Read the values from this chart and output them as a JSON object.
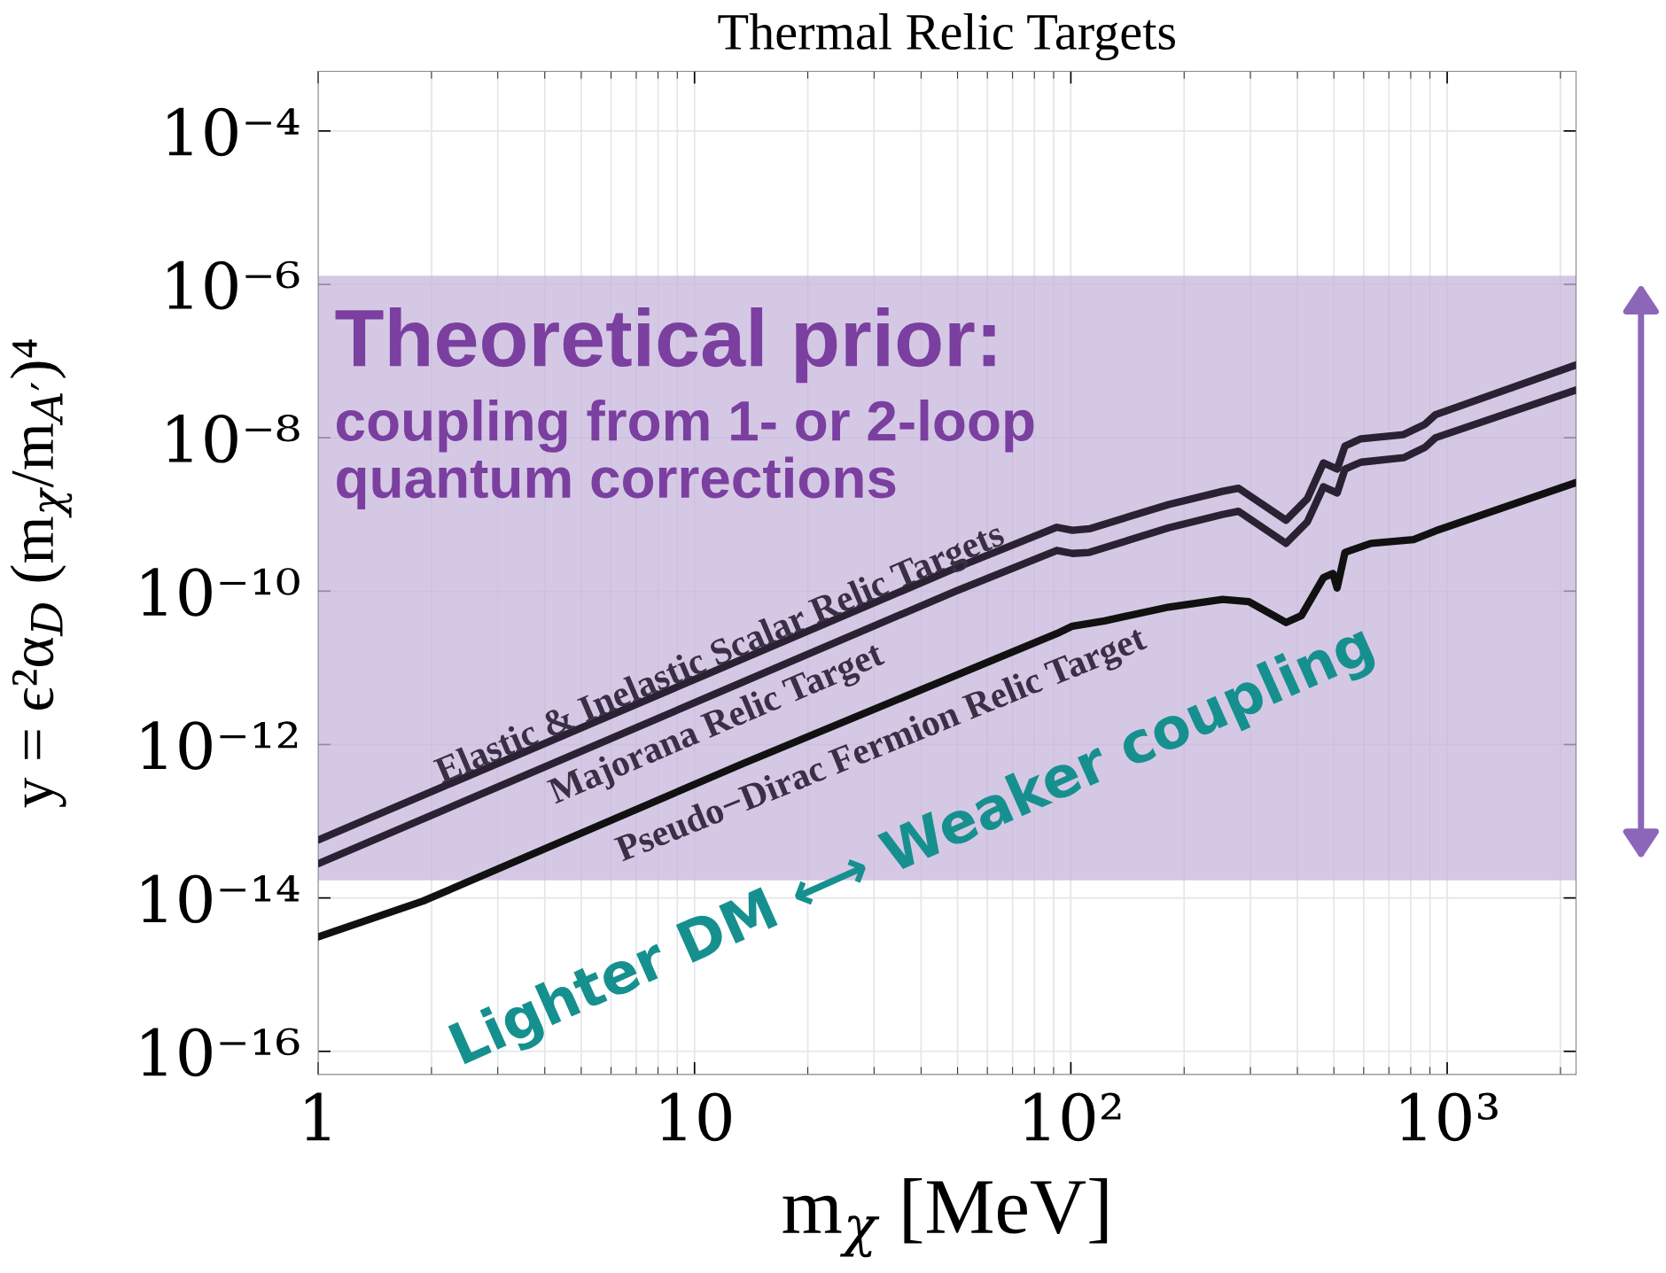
{
  "chart_data": {
    "type": "line",
    "title": "Thermal Relic Targets",
    "xlabel": "m$_{χ}$ [MeV]",
    "ylabel": "y = ϵ²α$_{D}$ (m$_{χ}$/m$_{A′}$)⁴",
    "log": "xy",
    "grid": true,
    "marker": "none",
    "line_style": "solid",
    "xlim": [
      1,
      2200
    ],
    "ylim": [
      5e-17,
      0.0006
    ],
    "xticks": [
      1,
      10,
      {
        "value": 100,
        "label": "10²"
      },
      {
        "value": 1000,
        "label": "10³"
      }
    ],
    "yticks": [
      {
        "value": 1e-16,
        "label": "10⁻¹⁶"
      },
      {
        "value": 1e-14,
        "label": "10⁻¹⁴"
      },
      {
        "value": 1e-12,
        "label": "10⁻¹²"
      },
      {
        "value": 1e-10,
        "label": "10⁻¹⁰"
      },
      {
        "value": 1e-08,
        "label": "10⁻⁸"
      },
      {
        "value": 1e-06,
        "label": "10⁻⁶"
      },
      {
        "value": 0.0001,
        "label": "10⁻⁴"
      }
    ],
    "series": [
      {
        "color": "#2a2233",
        "x": [
          1,
          3.64,
          13.4,
          49.4,
          91.8,
          101,
          112,
          182,
          253,
          279,
          373,
          425,
          469,
          510,
          535,
          590,
          766,
          873,
          931,
          2200
        ],
        "values": [
          5.7e-14,
          8.5e-13,
          1.3e-11,
          2e-10,
          6.8e-10,
          6.2e-10,
          6.5e-10,
          1.35e-09,
          2e-09,
          2.2e-09,
          8.4e-10,
          1.6e-09,
          4.7e-09,
          3.9e-09,
          7.8e-09,
          9.7e-09,
          1.1e-08,
          1.5e-08,
          2e-08,
          8.9e-08
        ]
      },
      {
        "color": "#2a2233",
        "x": [
          1,
          3.64,
          13.4,
          49.4,
          91.8,
          101,
          112,
          182,
          253,
          279,
          373,
          425,
          469,
          510,
          535,
          590,
          766,
          873,
          931,
          2200
        ],
        "values": [
          2.8e-14,
          4.2e-13,
          6.5e-12,
          1e-10,
          3.4e-10,
          3.1e-10,
          3.2e-10,
          6.7e-10,
          1e-09,
          1.1e-09,
          4.2e-10,
          8e-10,
          2.3e-09,
          1.9e-09,
          3.9e-09,
          4.8e-09,
          5.5e-09,
          7.5e-09,
          1e-08,
          4.2e-08
        ]
      },
      {
        "color": "#111111",
        "x": [
          1,
          1.9,
          13.4,
          91.8,
          101,
          123,
          182,
          253,
          297,
          373,
          410,
          469,
          497,
          510,
          535,
          627,
          814,
          931,
          2200
        ],
        "values": [
          3.1e-15,
          9.1e-15,
          5.6e-13,
          2.8e-11,
          3.5e-11,
          4.1e-11,
          6.2e-11,
          7.8e-11,
          7.3e-11,
          3.9e-11,
          4.8e-11,
          1.5e-10,
          1.7e-10,
          1.1e-10,
          3.2e-10,
          4.2e-10,
          4.7e-10,
          6.1e-10,
          2.6e-09
        ]
      }
    ],
    "bands": [
      {
        "axis": "y",
        "from": 1.7e-14,
        "to": 1.3e-06,
        "color": "#c7b6dc"
      }
    ],
    "annotations": [
      "Elastic & Inelastic Scalar Relic Targets",
      "Majorana Relic Target",
      "Pseudo−Dirac Fermion Relic Target",
      "Theoretical prior:",
      "coupling from 1- or 2-loop\nquantum corrections",
      "Lighter DM ⟷ Weaker coupling"
    ]
  }
}
